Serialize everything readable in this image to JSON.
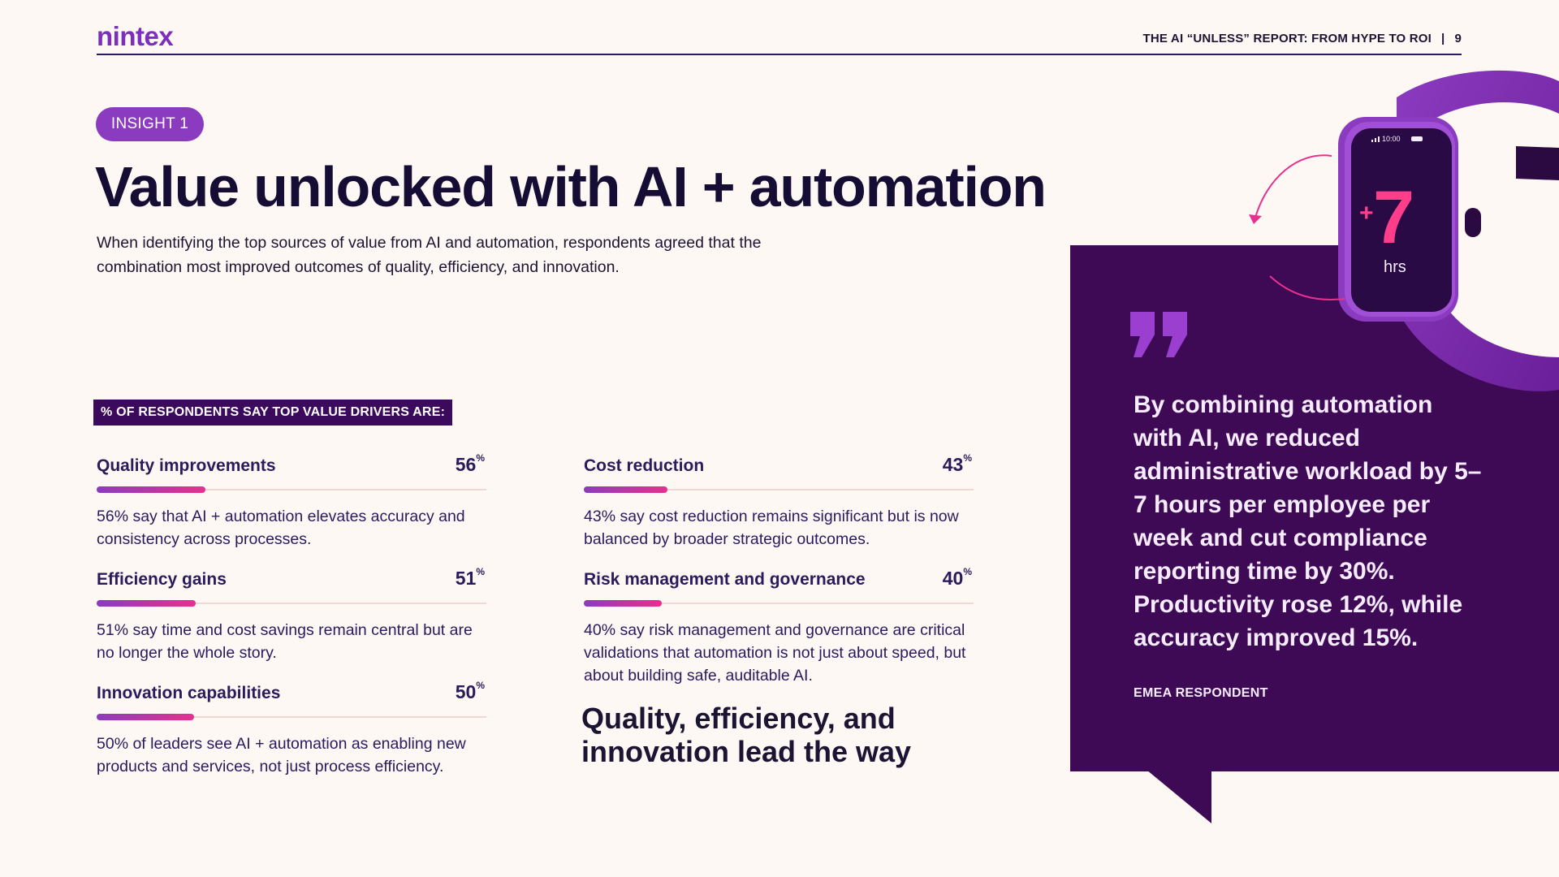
{
  "brand": {
    "logo_text": "nintex"
  },
  "header": {
    "report_title": "THE AI “UNLESS” REPORT: FROM HYPE TO ROI",
    "separator": "|",
    "page_number": "9"
  },
  "insight": {
    "label": "INSIGHT 1"
  },
  "main": {
    "title": "Value unlocked with AI + automation",
    "intro": "When identifying the top sources of value from AI and automation, respondents agreed that the combination most improved outcomes of quality, efficiency, and innovation."
  },
  "drivers": {
    "section_label": "% OF RESPONDENTS SAY TOP VALUE DRIVERS ARE:",
    "percent_symbol": "%",
    "items": [
      {
        "label": "Quality improvements",
        "value": "56",
        "percent": 56,
        "description": "56% say that AI + automation elevates accuracy and consistency across processes."
      },
      {
        "label": "Efficiency gains",
        "value": "51",
        "percent": 51,
        "description": "51% say time and cost savings remain central but are no longer the whole story."
      },
      {
        "label": "Innovation capabilities",
        "value": "50",
        "percent": 50,
        "description": "50% of leaders see AI + automation as enabling new products and services, not just process efficiency."
      },
      {
        "label": "Cost reduction",
        "value": "43",
        "percent": 43,
        "description": "43% say cost reduction remains significant but is now balanced by broader strategic outcomes."
      },
      {
        "label": "Risk management and governance",
        "value": "40",
        "percent": 40,
        "description": "40% say risk management and governance are critical validations that automation is not just about speed, but about building safe, auditable AI."
      }
    ],
    "tagline": "Quality, efficiency, and innovation lead the way"
  },
  "watch": {
    "status_time": "10:00",
    "plus": "+",
    "value": "7",
    "unit": "hrs"
  },
  "quote": {
    "text": "By combining automation with AI, we reduced administrative workload by 5–7 hours per employee per week and cut compliance reporting time by 30%. Productivity rose 12%, while accuracy improved 15%.",
    "source": "EMEA RESPONDENT"
  },
  "colors": {
    "brand_purple": "#7b2fbf",
    "panel": "#3f0a55",
    "accent_pink": "#e8308e",
    "watch_band": "#8b3bbf"
  }
}
